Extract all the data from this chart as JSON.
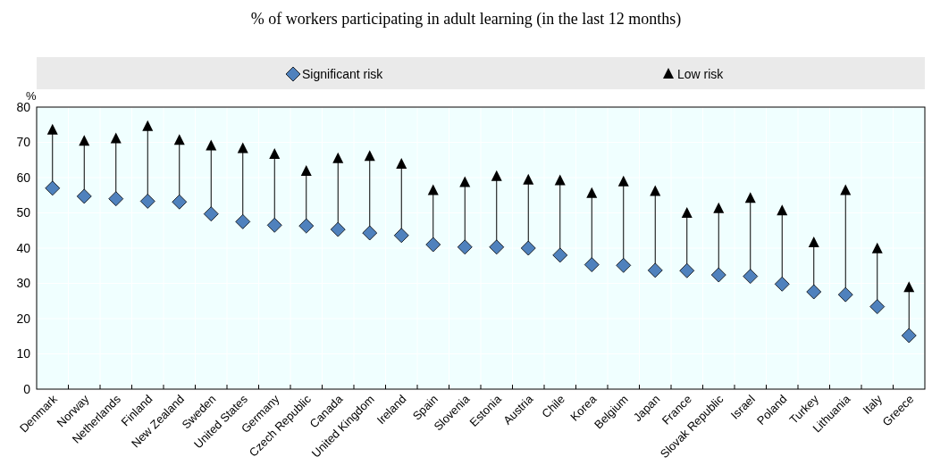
{
  "chart_data": {
    "type": "scatter",
    "title": "% of workers participating in adult learning (in the last 12 months)",
    "ylabel": "%",
    "categories": [
      "Denmark",
      "Norway",
      "Netherlands",
      "Finland",
      "New Zealand",
      "Sweden",
      "United States",
      "Germany",
      "Czech Republic",
      "Canada",
      "United Kingdom",
      "Ireland",
      "Spain",
      "Slovenia",
      "Estonia",
      "Austria",
      "Chile",
      "Korea",
      "Belgium",
      "Japan",
      "France",
      "Slovak Republic",
      "Israel",
      "Poland",
      "Turkey",
      "Lithuania",
      "Italy",
      "Greece"
    ],
    "series": [
      {
        "name": "Significant risk",
        "color": "#4f81bd",
        "marker": "diamond",
        "values": [
          57,
          54.7,
          54,
          53.3,
          53.1,
          49.7,
          47.5,
          46.5,
          46.3,
          45.3,
          44.3,
          43.6,
          41,
          40.3,
          40.3,
          40,
          38,
          35.3,
          35.1,
          33.7,
          33.6,
          32.4,
          32,
          29.8,
          27.6,
          26.8,
          23.4,
          15.2
        ]
      },
      {
        "name": "Low risk",
        "color": "#000000",
        "marker": "triangle",
        "values": [
          73.5,
          70.3,
          71,
          74.5,
          70.6,
          69,
          68.2,
          66.6,
          61.8,
          65.4,
          66,
          63.8,
          56.3,
          58.6,
          60.3,
          59.3,
          59.1,
          55.5,
          58.8,
          56.1,
          49.9,
          51.2,
          54.1,
          50.6,
          41.5,
          56.3,
          39.8,
          28.8
        ]
      }
    ],
    "ylim": [
      0,
      80
    ],
    "yticks": [
      0,
      10,
      20,
      30,
      40,
      50,
      60,
      70,
      80
    ],
    "grid": true,
    "legend": "top"
  }
}
